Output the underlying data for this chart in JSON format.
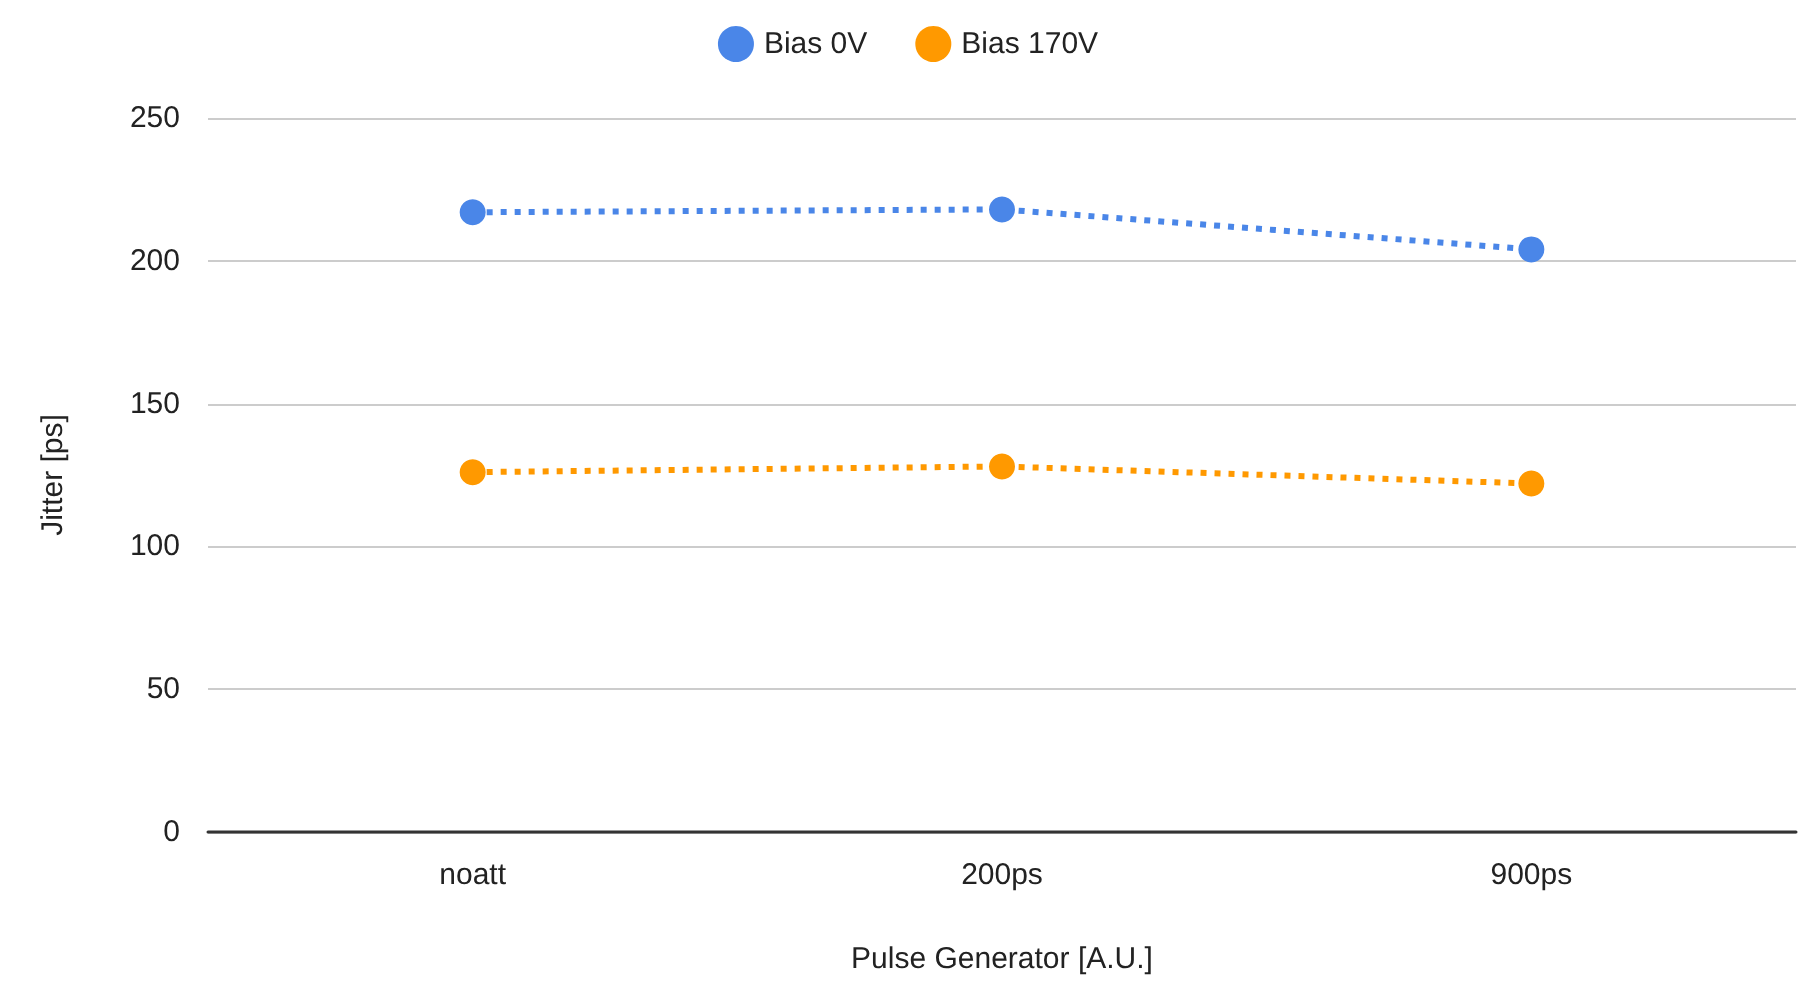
{
  "chart_data": {
    "type": "line",
    "xlabel": "Pulse Generator [A.U.]",
    "ylabel": "Jitter [ps]",
    "categories": [
      "noatt",
      "200ps",
      "900ps"
    ],
    "series": [
      {
        "name": "Bias 0V",
        "color": "#4a86e8",
        "values": [
          217,
          218,
          204
        ]
      },
      {
        "name": "Bias 170V",
        "color": "#ff9900",
        "values": [
          126,
          128,
          122
        ]
      }
    ],
    "ylim": [
      0,
      250
    ],
    "yticks": [
      0,
      50,
      100,
      150,
      200,
      250
    ],
    "grid": "y",
    "legend": "top",
    "marker": "circle",
    "line_style": "dotted"
  }
}
